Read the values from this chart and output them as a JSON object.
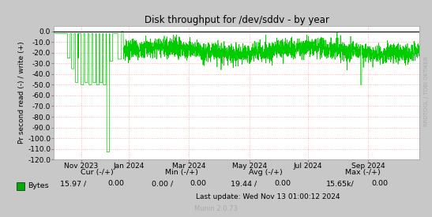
{
  "title": "Disk throughput for /dev/sddv - by year",
  "ylabel": "Pr second read (-) / write (+)",
  "ylim": [
    -120,
    5
  ],
  "ytick_vals": [
    0.0,
    -10.0,
    -20.0,
    -30.0,
    -40.0,
    -50.0,
    -60.0,
    -70.0,
    -80.0,
    -90.0,
    -100.0,
    -110.0,
    -120.0
  ],
  "ytick_labels": [
    "0.0",
    "-10.0",
    "-20.0",
    "-30.0",
    "-40.0",
    "-50.0",
    "-60.0",
    "-70.0",
    "-80.0",
    "-90.0",
    "-100.0",
    "-110.0",
    "-120.0"
  ],
  "bg_color": "#c8c8c8",
  "plot_bg_color": "#ffffff",
  "grid_color": "#ff9999",
  "line_color": "#00cc00",
  "border_color": "#000000",
  "legend_square_color": "#00aa00",
  "footer_text": "Munin 2.0.73",
  "last_update": "Last update: Wed Nov 13 01:00:12 2024",
  "cur_label": "Cur (-/+)",
  "min_label": "Min (-/+)",
  "avg_label": "Avg (-/+)",
  "max_label": "Max (-/+)",
  "cur_val": "15.97 /",
  "cur_val2": "0.00",
  "min_val": "0.00 /",
  "min_val2": "0.00",
  "avg_val": "19.44 /",
  "avg_val2": "0.00",
  "max_val": "15.65k/",
  "max_val2": "0.00",
  "series_label": "Bytes",
  "xtick_labels": [
    "Nov 2023",
    "Jan 2024",
    "Mar 2024",
    "May 2024",
    "Jul 2024",
    "Sep 2024"
  ],
  "xtick_pos": [
    0.075,
    0.205,
    0.37,
    0.535,
    0.695,
    0.86
  ],
  "watermark": "RRDTOOL / TOBI OETIKER"
}
